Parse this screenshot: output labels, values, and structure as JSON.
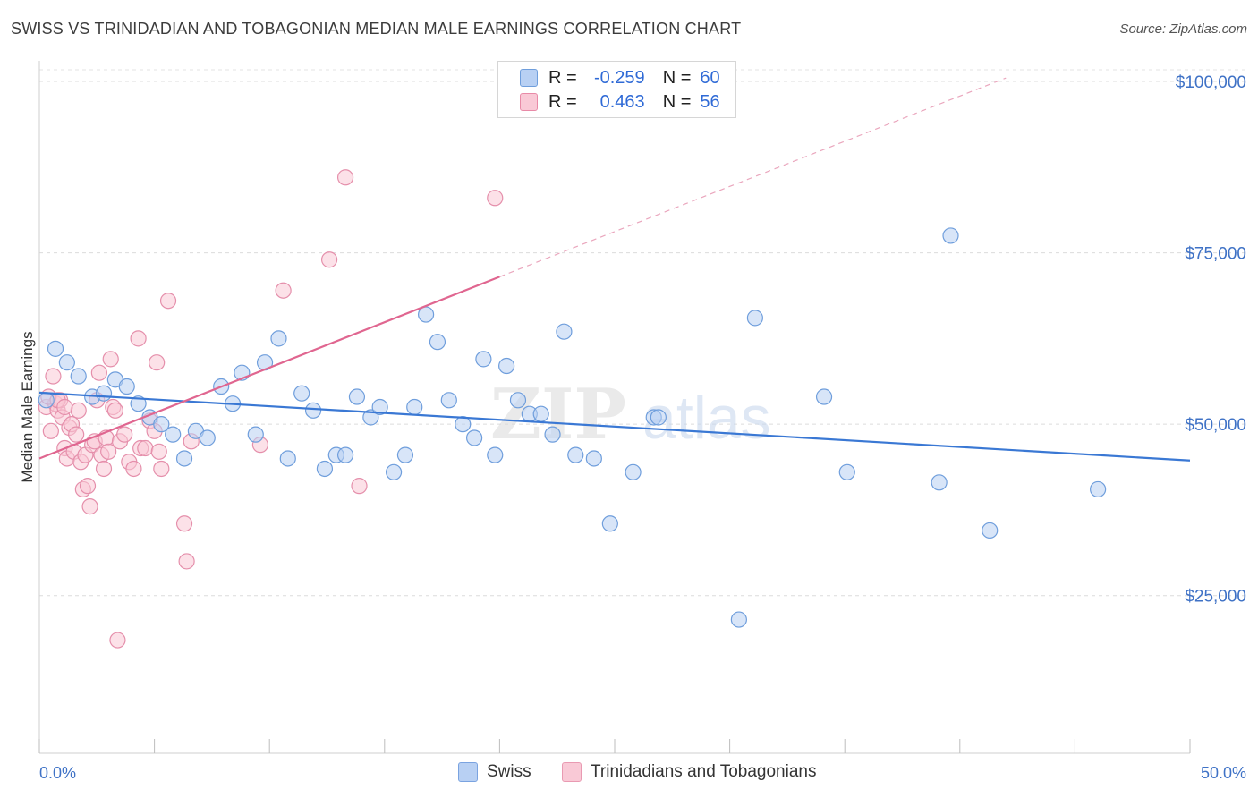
{
  "title": "SWISS VS TRINIDADIAN AND TOBAGONIAN MEDIAN MALE EARNINGS CORRELATION CHART",
  "source": "Source: ZipAtlas.com",
  "watermark": {
    "zip": "ZIP",
    "atlas": "atlas"
  },
  "legend": {
    "r_label": "R =",
    "n_label": "N =",
    "rows": [
      {
        "r": "-0.259",
        "n": "60",
        "color": "#a9c7f0",
        "border": "#6f9edc"
      },
      {
        "r": "0.463",
        "n": "56",
        "color": "#f7b8cb",
        "border": "#e88aa7"
      }
    ]
  },
  "bottom_legend": [
    {
      "label": "Swiss",
      "color": "#b8d0f3",
      "border": "#7aa3e0"
    },
    {
      "label": "Trinidadians and Tobagonians",
      "color": "#f9c9d6",
      "border": "#e99ab2"
    }
  ],
  "chart_data": {
    "type": "scatter",
    "ylabel": "Median Male Earnings",
    "xlim": [
      0,
      50
    ],
    "ylim": [
      2000,
      103000
    ],
    "x_tick_labels": [
      "0.0%",
      "50.0%"
    ],
    "y_ticks": [
      {
        "value": 25000,
        "label": "$25,000"
      },
      {
        "value": 50000,
        "label": "$50,000"
      },
      {
        "value": 75000,
        "label": "$75,000"
      },
      {
        "value": 100000,
        "label": "$100,000"
      }
    ],
    "grid": true,
    "colors": {
      "swiss": "#3a78d4",
      "trini": "#e06690",
      "swiss_fill": "#b8d0f3",
      "trini_fill": "#f9c9d6"
    },
    "series": [
      {
        "name": "Swiss",
        "points": [
          [
            0.3,
            53500
          ],
          [
            0.7,
            61000
          ],
          [
            1.2,
            59000
          ],
          [
            1.7,
            57000
          ],
          [
            2.3,
            54000
          ],
          [
            2.8,
            54500
          ],
          [
            3.3,
            56500
          ],
          [
            3.8,
            55500
          ],
          [
            4.3,
            53000
          ],
          [
            4.8,
            51000
          ],
          [
            5.3,
            50000
          ],
          [
            5.8,
            48500
          ],
          [
            6.3,
            45000
          ],
          [
            6.8,
            49000
          ],
          [
            7.3,
            48000
          ],
          [
            7.9,
            55500
          ],
          [
            8.4,
            53000
          ],
          [
            8.8,
            57500
          ],
          [
            9.4,
            48500
          ],
          [
            9.8,
            59000
          ],
          [
            10.4,
            62500
          ],
          [
            10.8,
            45000
          ],
          [
            11.4,
            54500
          ],
          [
            11.9,
            52000
          ],
          [
            12.4,
            43500
          ],
          [
            12.9,
            45500
          ],
          [
            13.3,
            45500
          ],
          [
            13.8,
            54000
          ],
          [
            14.4,
            51000
          ],
          [
            14.8,
            52500
          ],
          [
            15.4,
            43000
          ],
          [
            15.9,
            45500
          ],
          [
            16.3,
            52500
          ],
          [
            16.8,
            66000
          ],
          [
            17.3,
            62000
          ],
          [
            17.8,
            53500
          ],
          [
            18.4,
            50000
          ],
          [
            18.9,
            48000
          ],
          [
            19.3,
            59500
          ],
          [
            19.8,
            45500
          ],
          [
            20.3,
            58500
          ],
          [
            20.8,
            53500
          ],
          [
            21.3,
            51500
          ],
          [
            21.8,
            51500
          ],
          [
            22.3,
            48500
          ],
          [
            22.8,
            63500
          ],
          [
            23.3,
            45500
          ],
          [
            24.1,
            45000
          ],
          [
            24.8,
            35500
          ],
          [
            25.8,
            43000
          ],
          [
            26.7,
            51000
          ],
          [
            26.9,
            51000
          ],
          [
            30.4,
            21500
          ],
          [
            31.1,
            65500
          ],
          [
            34.1,
            54000
          ],
          [
            35.1,
            43000
          ],
          [
            39.1,
            41500
          ],
          [
            39.6,
            77500
          ],
          [
            41.3,
            34500
          ],
          [
            46.0,
            40500
          ]
        ],
        "trend": {
          "x": [
            0,
            50
          ],
          "y": [
            54600,
            44700
          ]
        }
      },
      {
        "name": "Trinidadians and Tobagonians",
        "points": [
          [
            0.3,
            52500
          ],
          [
            0.5,
            49000
          ],
          [
            0.6,
            57000
          ],
          [
            0.7,
            53000
          ],
          [
            0.8,
            52000
          ],
          [
            0.9,
            53500
          ],
          [
            1.0,
            51000
          ],
          [
            1.1,
            46500
          ],
          [
            1.2,
            45000
          ],
          [
            1.3,
            49500
          ],
          [
            1.4,
            50000
          ],
          [
            1.5,
            46000
          ],
          [
            1.6,
            48500
          ],
          [
            1.7,
            52000
          ],
          [
            1.8,
            44500
          ],
          [
            1.9,
            40500
          ],
          [
            2.0,
            45500
          ],
          [
            2.1,
            41000
          ],
          [
            2.2,
            38000
          ],
          [
            2.3,
            47000
          ],
          [
            2.4,
            47500
          ],
          [
            2.5,
            53500
          ],
          [
            2.6,
            57500
          ],
          [
            2.7,
            45500
          ],
          [
            2.8,
            43500
          ],
          [
            2.9,
            48000
          ],
          [
            3.0,
            46000
          ],
          [
            3.1,
            59500
          ],
          [
            3.2,
            52500
          ],
          [
            3.3,
            52000
          ],
          [
            3.4,
            18500
          ],
          [
            3.5,
            47500
          ],
          [
            3.7,
            48500
          ],
          [
            3.9,
            44500
          ],
          [
            4.1,
            43500
          ],
          [
            4.3,
            62500
          ],
          [
            4.4,
            46500
          ],
          [
            4.6,
            46500
          ],
          [
            4.8,
            50500
          ],
          [
            5.0,
            49000
          ],
          [
            5.1,
            59000
          ],
          [
            5.2,
            46000
          ],
          [
            5.3,
            43500
          ],
          [
            5.6,
            68000
          ],
          [
            6.3,
            35500
          ],
          [
            6.4,
            30000
          ],
          [
            6.6,
            47500
          ],
          [
            9.6,
            47000
          ],
          [
            10.6,
            69500
          ],
          [
            12.6,
            74000
          ],
          [
            13.3,
            86000
          ],
          [
            13.9,
            41000
          ],
          [
            19.8,
            83000
          ],
          [
            0.4,
            54000
          ],
          [
            0.8,
            53500
          ],
          [
            1.1,
            52500
          ]
        ],
        "trend": {
          "x": [
            0,
            20
          ],
          "y": [
            45000,
            71500
          ]
        },
        "trend_dashed": {
          "x": [
            20,
            42
          ],
          "y": [
            71500,
            100500
          ]
        }
      }
    ]
  }
}
